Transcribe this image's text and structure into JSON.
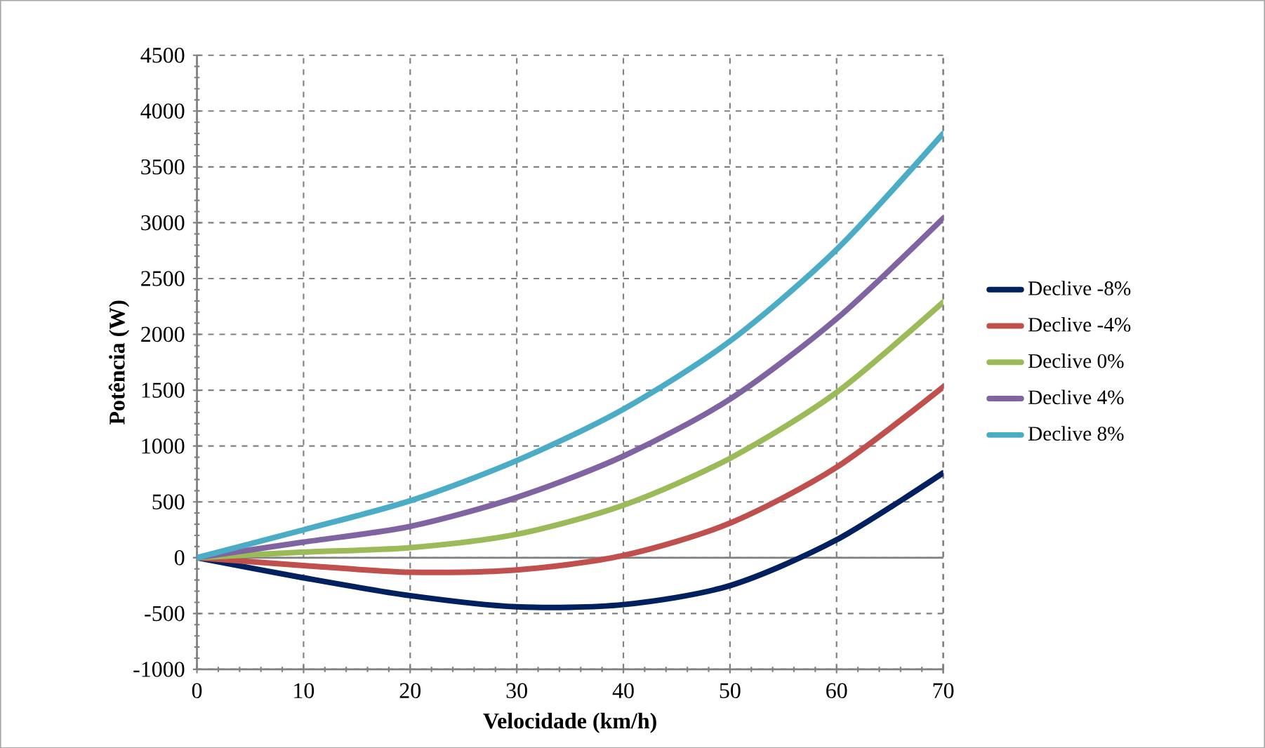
{
  "chart_data": {
    "type": "line",
    "xlabel": "Velocidade (km/h)",
    "ylabel": "Potência (W)",
    "x": [
      0,
      10,
      20,
      30,
      40,
      50,
      60,
      70
    ],
    "series": [
      {
        "name": "Declive -8%",
        "color": "#002060",
        "values": [
          0,
          -180,
          -340,
          -440,
          -420,
          -250,
          160,
          760
        ]
      },
      {
        "name": "Declive -4%",
        "color": "#c0504d",
        "values": [
          0,
          -70,
          -130,
          -110,
          20,
          310,
          810,
          1530
        ]
      },
      {
        "name": "Declive 0%",
        "color": "#9bbb59",
        "values": [
          0,
          50,
          90,
          210,
          470,
          890,
          1480,
          2290
        ]
      },
      {
        "name": "Declive 4%",
        "color": "#8064a2",
        "values": [
          0,
          140,
          280,
          540,
          910,
          1420,
          2140,
          3040
        ]
      },
      {
        "name": "Declive 8%",
        "color": "#4bacc6",
        "values": [
          0,
          250,
          510,
          870,
          1330,
          1940,
          2760,
          3800
        ]
      }
    ],
    "xlim": [
      0,
      70
    ],
    "xticks": [
      0,
      10,
      20,
      30,
      40,
      50,
      60,
      70
    ],
    "ylim": [
      -1000,
      4500
    ],
    "yticks": [
      -1000,
      -500,
      0,
      500,
      1000,
      1500,
      2000,
      2500,
      3000,
      3500,
      4000,
      4500
    ],
    "grid": true,
    "legend": "right",
    "marker": "none",
    "line_style": "solid"
  }
}
